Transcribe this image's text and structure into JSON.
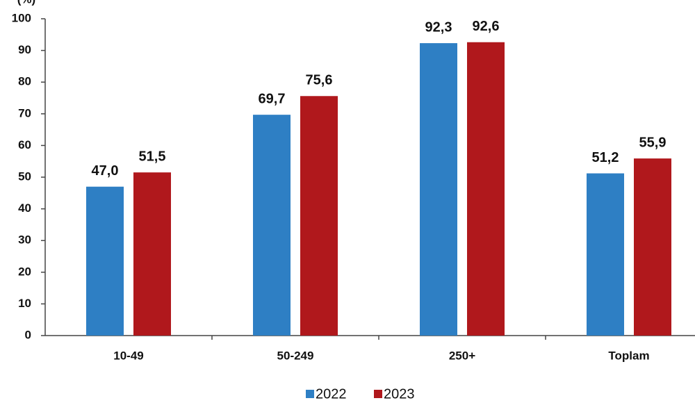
{
  "chart_data": {
    "type": "bar",
    "y_label": "(%)",
    "categories": [
      "10-49",
      "50-249",
      "250+",
      "Toplam"
    ],
    "series": [
      {
        "name": "2022",
        "color": "#2e7fc4",
        "values": [
          47.0,
          69.7,
          92.3,
          51.2
        ],
        "value_labels": [
          "47,0",
          "69,7",
          "92,3",
          "51,2"
        ]
      },
      {
        "name": "2023",
        "color": "#b0181c",
        "values": [
          51.5,
          75.6,
          92.6,
          55.9
        ],
        "value_labels": [
          "51,5",
          "75,6",
          "92,6",
          "55,9"
        ]
      }
    ],
    "ylim": [
      0,
      100
    ],
    "yticks": [
      0,
      10,
      20,
      30,
      40,
      50,
      60,
      70,
      80,
      90,
      100
    ],
    "legend": "bottom"
  }
}
